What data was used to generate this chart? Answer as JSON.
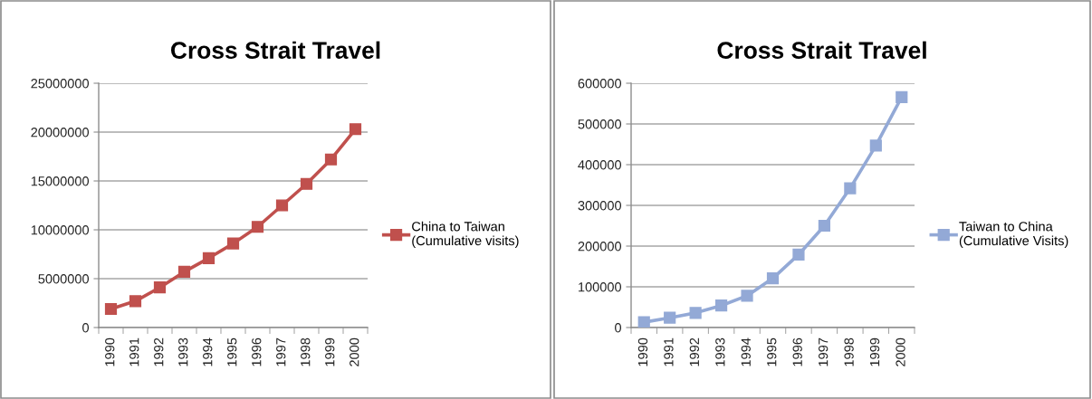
{
  "chart_data": [
    {
      "type": "line",
      "title": "Cross Strait Travel",
      "categories": [
        "1990",
        "1991",
        "1992",
        "1993",
        "1994",
        "1995",
        "1996",
        "1997",
        "1998",
        "1999",
        "2000"
      ],
      "series": [
        {
          "name": "China to Taiwan\n(Cumulative visits)",
          "color": "#c0504d",
          "values": [
            1900000,
            2700000,
            4100000,
            5700000,
            7100000,
            8600000,
            10300000,
            12500000,
            14700000,
            17200000,
            20300000
          ]
        }
      ],
      "ylim": [
        0,
        25000000
      ],
      "yticks": [
        0,
        5000000,
        10000000,
        15000000,
        20000000,
        25000000
      ],
      "grid": "y",
      "legend": "right",
      "marker": "square",
      "line_style": "solid"
    },
    {
      "type": "line",
      "title": "Cross Strait Travel",
      "categories": [
        "1990",
        "1991",
        "1992",
        "1993",
        "1994",
        "1995",
        "1996",
        "1997",
        "1998",
        "1999",
        "2000"
      ],
      "series": [
        {
          "name": "Taiwan to China\n(Cumulative Visits)",
          "color": "#93a9d6",
          "values": [
            13000,
            24000,
            36000,
            54000,
            78000,
            121000,
            179000,
            250000,
            342000,
            447000,
            566000
          ]
        }
      ],
      "ylim": [
        0,
        600000
      ],
      "yticks": [
        0,
        100000,
        200000,
        300000,
        400000,
        500000,
        600000
      ],
      "grid": "y",
      "legend": "right",
      "marker": "square",
      "line_style": "solid"
    }
  ]
}
